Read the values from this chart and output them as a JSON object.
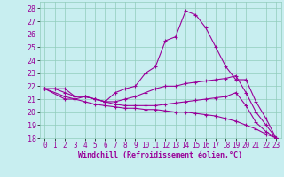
{
  "xlabel": "Windchill (Refroidissement éolien,°C)",
  "xlim": [
    -0.5,
    23.5
  ],
  "ylim": [
    18,
    28.5
  ],
  "yticks": [
    18,
    19,
    20,
    21,
    22,
    23,
    24,
    25,
    26,
    27,
    28
  ],
  "xticks": [
    0,
    1,
    2,
    3,
    4,
    5,
    6,
    7,
    8,
    9,
    10,
    11,
    12,
    13,
    14,
    15,
    16,
    17,
    18,
    19,
    20,
    21,
    22,
    23
  ],
  "background_color": "#c8eef0",
  "grid_color": "#90ccbb",
  "line_color": "#990099",
  "series": [
    {
      "x": [
        0,
        1,
        2,
        3,
        4,
        5,
        6,
        7,
        8,
        9,
        10,
        11,
        12,
        13,
        14,
        15,
        16,
        17,
        18,
        19,
        20,
        21,
        22,
        23
      ],
      "y": [
        21.8,
        21.8,
        21.8,
        21.2,
        21.2,
        21.0,
        20.8,
        21.5,
        21.8,
        22.0,
        23.0,
        23.5,
        25.5,
        25.8,
        27.8,
        27.5,
        26.5,
        25.0,
        23.5,
        22.5,
        22.5,
        20.8,
        19.5,
        18.0
      ]
    },
    {
      "x": [
        0,
        1,
        2,
        3,
        4,
        5,
        6,
        7,
        8,
        9,
        10,
        11,
        12,
        13,
        14,
        15,
        16,
        17,
        18,
        19,
        20,
        21,
        22,
        23
      ],
      "y": [
        21.8,
        21.8,
        21.5,
        21.2,
        21.2,
        21.0,
        20.8,
        20.8,
        21.0,
        21.2,
        21.5,
        21.8,
        22.0,
        22.0,
        22.2,
        22.3,
        22.4,
        22.5,
        22.6,
        22.8,
        21.5,
        20.0,
        19.0,
        18.0
      ]
    },
    {
      "x": [
        0,
        2,
        3,
        4,
        5,
        6,
        7,
        8,
        9,
        10,
        11,
        12,
        13,
        14,
        15,
        16,
        17,
        18,
        19,
        20,
        21,
        22,
        23
      ],
      "y": [
        21.8,
        21.2,
        21.0,
        21.2,
        21.0,
        20.8,
        20.6,
        20.5,
        20.5,
        20.5,
        20.5,
        20.6,
        20.7,
        20.8,
        20.9,
        21.0,
        21.1,
        21.2,
        21.5,
        20.5,
        19.2,
        18.5,
        18.0
      ]
    },
    {
      "x": [
        0,
        2,
        3,
        4,
        5,
        6,
        7,
        8,
        9,
        10,
        11,
        12,
        13,
        14,
        15,
        16,
        17,
        18,
        19,
        20,
        21,
        22,
        23
      ],
      "y": [
        21.8,
        21.0,
        21.0,
        20.8,
        20.6,
        20.5,
        20.4,
        20.3,
        20.3,
        20.2,
        20.2,
        20.1,
        20.0,
        20.0,
        19.9,
        19.8,
        19.7,
        19.5,
        19.3,
        19.0,
        18.7,
        18.3,
        18.0
      ]
    }
  ]
}
